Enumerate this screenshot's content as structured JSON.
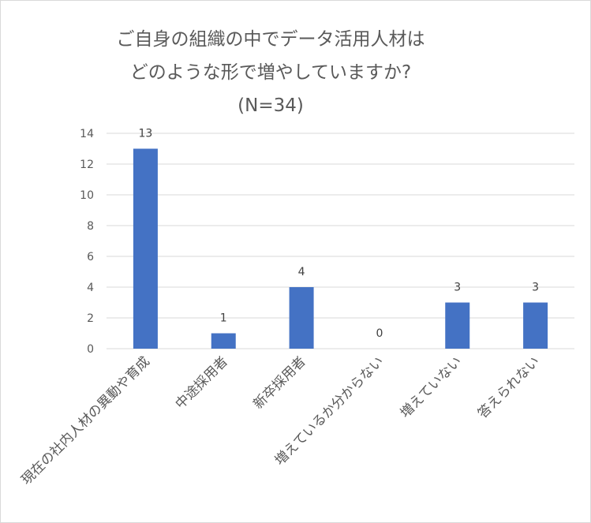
{
  "chart_data": {
    "type": "bar",
    "title_lines": [
      "ご自身の組織の中でデータ活用人材は",
      "どのような形で増やしていますか?",
      "(N=34)"
    ],
    "categories": [
      "現在の社内人材の異動や育成",
      "中途採用者",
      "新卒採用者",
      "増えているか分からない",
      "増えていない",
      "答えられない"
    ],
    "values": [
      13,
      1,
      4,
      0,
      3,
      3
    ],
    "data_labels": [
      "13",
      "1",
      "4",
      "0",
      "3",
      "3"
    ],
    "y_ticks": [
      "0",
      "2",
      "4",
      "6",
      "8",
      "10",
      "12",
      "14"
    ],
    "ylim": [
      0,
      14
    ],
    "grid": true,
    "legend": "none",
    "colors": {
      "bar": "#4472c4"
    }
  }
}
